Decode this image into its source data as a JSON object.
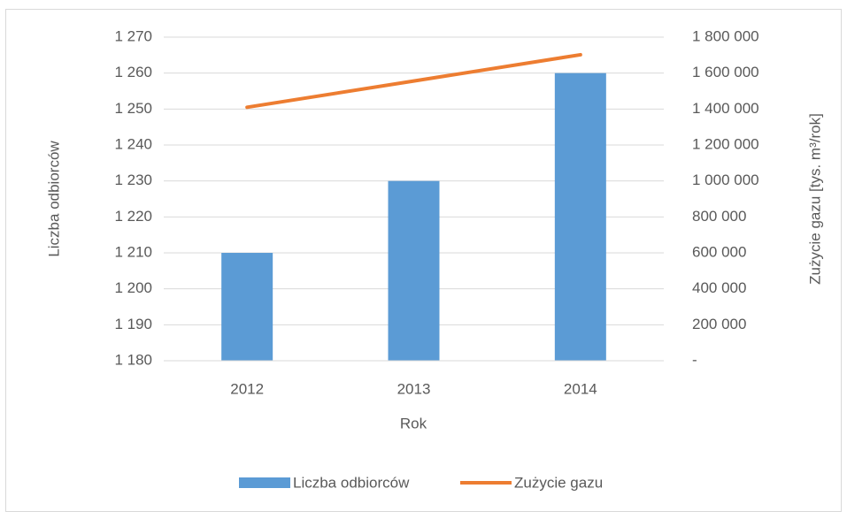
{
  "chart_data": {
    "type": "bar",
    "categories": [
      "2012",
      "2013",
      "2014"
    ],
    "series": [
      {
        "name": "Liczba odbiorców",
        "type": "bar",
        "color": "#5b9bd5",
        "values": [
          1210,
          1230,
          1260
        ]
      },
      {
        "name": "Zużycie gazu",
        "type": "line",
        "axis": "y2",
        "color": "#ed7d31",
        "values": [
          1410000,
          1556000,
          1702000
        ]
      }
    ],
    "xlabel": "Rok",
    "ylabel": "Liczba odbiorców",
    "y2label": "Zużycie gazu [tys. m³/rok]",
    "ylim": [
      1180,
      1270
    ],
    "yticks": [
      {
        "value": 1180,
        "label": "1 180"
      },
      {
        "value": 1190,
        "label": "1 190"
      },
      {
        "value": 1200,
        "label": "1 200"
      },
      {
        "value": 1210,
        "label": "1 210"
      },
      {
        "value": 1220,
        "label": "1 220"
      },
      {
        "value": 1230,
        "label": "1 230"
      },
      {
        "value": 1240,
        "label": "1 240"
      },
      {
        "value": 1250,
        "label": "1 250"
      },
      {
        "value": 1260,
        "label": "1 260"
      },
      {
        "value": 1270,
        "label": "1 270"
      }
    ],
    "y2lim": [
      0,
      1800000
    ],
    "y2ticks": [
      {
        "value": 0,
        "label": "-"
      },
      {
        "value": 200000,
        "label": "200 000"
      },
      {
        "value": 400000,
        "label": "400 000"
      },
      {
        "value": 600000,
        "label": "600 000"
      },
      {
        "value": 800000,
        "label": "800 000"
      },
      {
        "value": 1000000,
        "label": "1 000 000"
      },
      {
        "value": 1200000,
        "label": "1 200 000"
      },
      {
        "value": 1400000,
        "label": "1 400 000"
      },
      {
        "value": 1600000,
        "label": "1 600 000"
      },
      {
        "value": 1800000,
        "label": "1 800 000"
      }
    ],
    "grid": true,
    "legend": "bottom"
  }
}
